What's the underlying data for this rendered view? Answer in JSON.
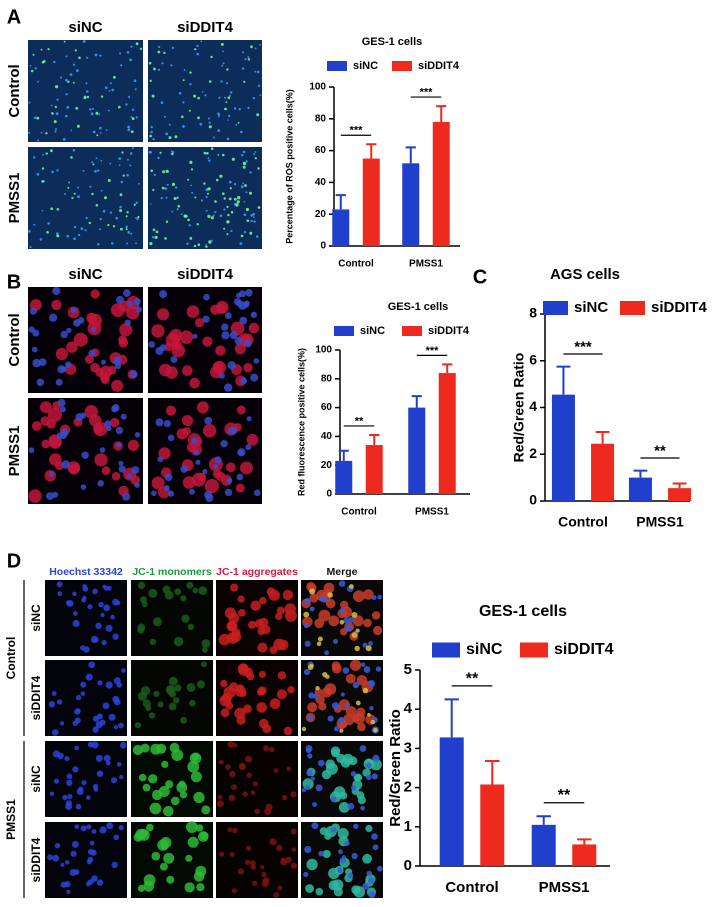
{
  "panel_labels": [
    "A",
    "B",
    "C",
    "D"
  ],
  "images": {
    "A": {
      "columns": [
        "siNC",
        "siDDIT4"
      ],
      "rows": [
        "Control",
        "PMSS1"
      ]
    },
    "B": {
      "columns": [
        "siNC",
        "siDDIT4"
      ],
      "rows": [
        "Control",
        "PMSS1"
      ]
    },
    "D": {
      "columns": [
        "Hoechst 33342",
        "JC-1 monomers",
        "JC-1 aggregates",
        "Merge"
      ],
      "groups": [
        "Control",
        "PMSS1"
      ],
      "rows": [
        "siNC",
        "siDDIT4",
        "siNC",
        "siDDIT4"
      ]
    }
  },
  "chart_data": [
    {
      "type": "bar",
      "title": "GES-1 cells",
      "ylabel": "Percentage of ROS positive cells(%)",
      "categories": [
        "Control",
        "PMSS1"
      ],
      "series": [
        {
          "name": "siNC",
          "color": "#1f3fcc",
          "values": [
            23,
            52
          ],
          "errors": [
            9,
            10
          ]
        },
        {
          "name": "siDDIT4",
          "color": "#ee2a1e",
          "values": [
            55,
            78
          ],
          "errors": [
            9,
            10
          ]
        }
      ],
      "annotations": [
        "***",
        "***"
      ],
      "ylim": [
        0,
        100
      ],
      "yticks": [
        0,
        20,
        40,
        60,
        80,
        100
      ]
    },
    {
      "type": "bar",
      "title": "GES-1 cells",
      "ylabel": "Red fluorescence positive cells(%)",
      "categories": [
        "Control",
        "PMSS1"
      ],
      "series": [
        {
          "name": "siNC",
          "color": "#1f3fcc",
          "values": [
            23,
            60
          ],
          "errors": [
            7,
            8
          ]
        },
        {
          "name": "siDDIT4",
          "color": "#ee2a1e",
          "values": [
            34,
            84
          ],
          "errors": [
            7,
            6
          ]
        }
      ],
      "annotations": [
        "**",
        "***"
      ],
      "ylim": [
        0,
        100
      ],
      "yticks": [
        0,
        20,
        40,
        60,
        80,
        100
      ]
    },
    {
      "type": "bar",
      "title": "AGS cells",
      "ylabel": "Red/Green Ratio",
      "categories": [
        "Control",
        "PMSS1"
      ],
      "series": [
        {
          "name": "siNC",
          "color": "#1f3fcc",
          "values": [
            4.55,
            1.0
          ],
          "errors": [
            1.2,
            0.3
          ]
        },
        {
          "name": "siDDIT4",
          "color": "#ee2a1e",
          "values": [
            2.45,
            0.55
          ],
          "errors": [
            0.5,
            0.2
          ]
        }
      ],
      "annotations": [
        "***",
        "**"
      ],
      "ylim": [
        0,
        8
      ],
      "yticks": [
        0,
        2,
        4,
        6,
        8
      ]
    },
    {
      "type": "bar",
      "title": "GES-1 cells",
      "ylabel": "Red/Green Ratio",
      "categories": [
        "Control",
        "PMSS1"
      ],
      "series": [
        {
          "name": "siNC",
          "color": "#1f3fcc",
          "values": [
            3.28,
            1.05
          ],
          "errors": [
            0.97,
            0.22
          ]
        },
        {
          "name": "siDDIT4",
          "color": "#ee2a1e",
          "values": [
            2.08,
            0.55
          ],
          "errors": [
            0.6,
            0.13
          ]
        }
      ],
      "annotations": [
        "**",
        "**"
      ],
      "ylim": [
        0,
        5
      ],
      "yticks": [
        0,
        1,
        2,
        3,
        4,
        5
      ]
    }
  ]
}
